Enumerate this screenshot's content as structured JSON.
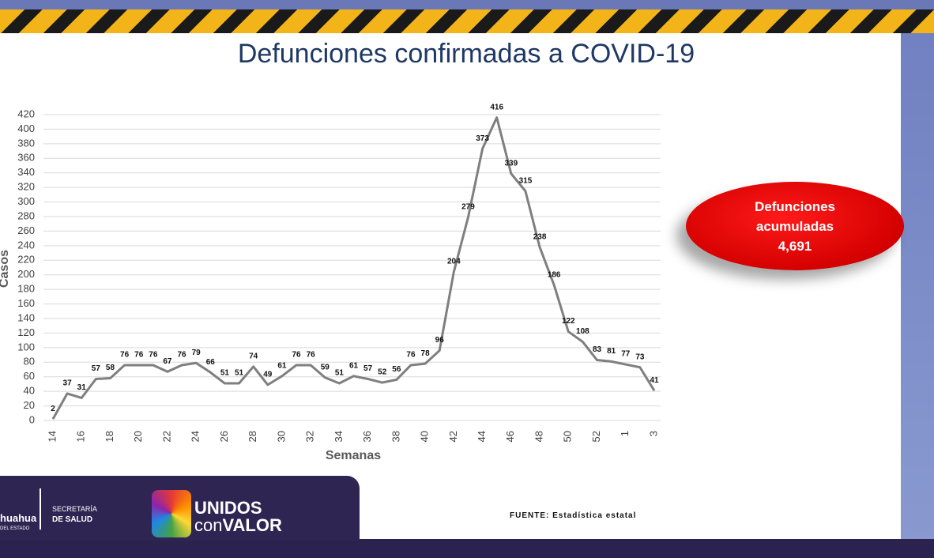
{
  "chart_data": {
    "type": "line",
    "title": "Defunciones confirmadas a COVID-19",
    "x_label": "Semanas",
    "y_label": "Casos",
    "categories": [
      "14",
      null,
      "16",
      null,
      "18",
      null,
      "20",
      null,
      "22",
      null,
      "24",
      null,
      "26",
      null,
      "28",
      null,
      "30",
      null,
      "32",
      null,
      "34",
      null,
      "36",
      null,
      "38",
      null,
      "40",
      null,
      "42",
      null,
      "44",
      null,
      "46",
      null,
      "48",
      null,
      "50",
      null,
      "52",
      null,
      "1",
      null,
      "3"
    ],
    "values": [
      2,
      37,
      31,
      57,
      58,
      76,
      76,
      76,
      67,
      76,
      79,
      66,
      51,
      51,
      74,
      49,
      61,
      76,
      76,
      59,
      51,
      61,
      57,
      52,
      56,
      76,
      78,
      96,
      204,
      279,
      373,
      416,
      339,
      315,
      238,
      186,
      122,
      108,
      83,
      81,
      77,
      73,
      41
    ],
    "color": "#7f7f7f",
    "ylim": [
      0,
      420
    ],
    "yticks": [
      0,
      20,
      40,
      60,
      80,
      100,
      120,
      140,
      160,
      180,
      200,
      220,
      240,
      260,
      280,
      300,
      320,
      340,
      360,
      380,
      400,
      420
    ],
    "grid": true
  },
  "callout": {
    "label": "Defunciones acumuladas",
    "total": "4,691"
  },
  "source": "FUENTE: Estadística estatal",
  "footer": {
    "state": "huahua",
    "state_sub": "DEL ESTADO",
    "dept_1": "SECRETARÍA",
    "dept_2": "DE SALUD",
    "brand_1": "UNIDOS",
    "brand_2": "con",
    "brand_3": "VALOR"
  }
}
